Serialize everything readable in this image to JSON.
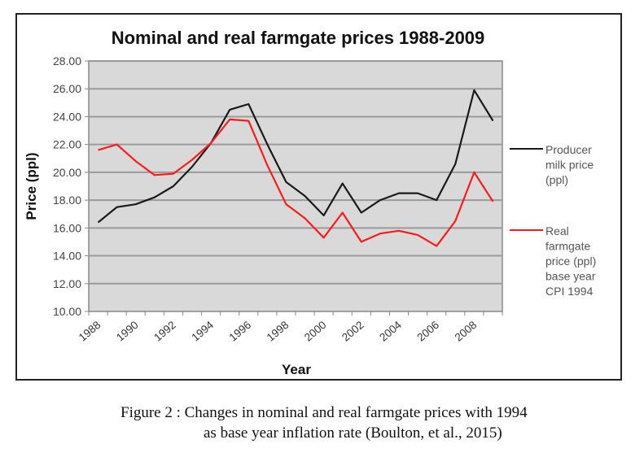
{
  "chart_data": {
    "type": "line",
    "title": "Nominal and real farmgate prices 1988-2009",
    "xlabel": "Year",
    "ylabel": "Price (ppl)",
    "ylim": [
      10,
      28
    ],
    "y_ticks": [
      "10.00",
      "12.00",
      "14.00",
      "16.00",
      "18.00",
      "20.00",
      "22.00",
      "24.00",
      "26.00",
      "28.00"
    ],
    "y_tick_values": [
      10,
      12,
      14,
      16,
      18,
      20,
      22,
      24,
      26,
      28
    ],
    "x": [
      1988,
      1989,
      1990,
      1991,
      1992,
      1993,
      1994,
      1995,
      1996,
      1997,
      1998,
      1999,
      2000,
      2001,
      2002,
      2003,
      2004,
      2005,
      2006,
      2007,
      2008,
      2009
    ],
    "x_tick_labels": [
      "1988",
      "1990",
      "1992",
      "1994",
      "1996",
      "1998",
      "2000",
      "2002",
      "2004",
      "2006",
      "2008"
    ],
    "grid": true,
    "legend_position": "right",
    "plot_background": "#d9d9d9",
    "series": [
      {
        "name": "Producer milk price (ppl)",
        "legend_lines": [
          "Producer",
          "milk price",
          "(ppl)"
        ],
        "color": "#1a1a1a",
        "values": [
          16.4,
          17.5,
          17.7,
          18.2,
          19.0,
          20.4,
          22.1,
          24.5,
          24.9,
          22.0,
          19.3,
          18.3,
          16.9,
          19.2,
          17.1,
          18.0,
          18.5,
          18.5,
          18.0,
          20.6,
          25.9,
          23.7
        ]
      },
      {
        "name": "Real farmgate price (ppl) base year CPI 1994",
        "legend_lines": [
          "Real",
          "farmgate",
          "price (ppl)",
          "base year",
          "CPI 1994"
        ],
        "color": "#ff1a1a",
        "values": [
          21.6,
          22.0,
          20.8,
          19.8,
          19.9,
          20.9,
          22.1,
          23.8,
          23.7,
          20.5,
          17.7,
          16.7,
          15.3,
          17.1,
          15.0,
          15.6,
          15.8,
          15.5,
          14.7,
          16.5,
          20.0,
          17.9
        ]
      }
    ]
  },
  "caption": {
    "line1": "Figure 2 : Changes in nominal and real farmgate prices with 1994",
    "line2": "as base year inflation rate (Boulton, et al., 2015)"
  }
}
